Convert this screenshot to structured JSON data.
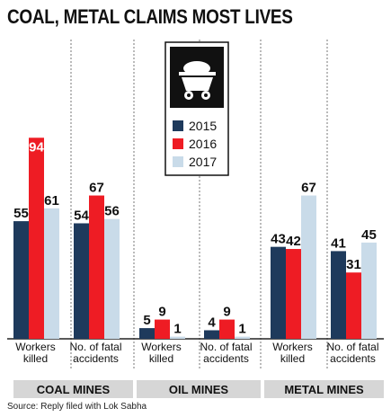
{
  "chart_data": {
    "type": "bar",
    "title": "COAL, METAL CLAIMS MOST LIVES",
    "source": "Source: Reply filed with Lok Sabha",
    "series_names": [
      "2015",
      "2016",
      "2017"
    ],
    "series_colors": [
      "#1e3a5c",
      "#ee1c24",
      "#c9dbe9"
    ],
    "categories": [
      "Workers killed",
      "No. of fatal accidents",
      "Workers killed",
      "No. of fatal accidents",
      "Workers killed",
      "No. of fatal accidents"
    ],
    "category_lines": [
      [
        "Workers",
        "killed"
      ],
      [
        "No. of fatal",
        "accidents"
      ],
      [
        "Workers",
        "killed"
      ],
      [
        "No. of fatal",
        "accidents"
      ],
      [
        "Workers",
        "killed"
      ],
      [
        "No. of fatal",
        "accidents"
      ]
    ],
    "groups": [
      "COAL MINES",
      "OIL MINES",
      "METAL MINES"
    ],
    "series": [
      {
        "name": "2015",
        "values": [
          55,
          54,
          5,
          4,
          43,
          41
        ]
      },
      {
        "name": "2016",
        "values": [
          94,
          67,
          9,
          9,
          42,
          31
        ]
      },
      {
        "name": "2017",
        "values": [
          61,
          56,
          1,
          1,
          67,
          45
        ]
      }
    ],
    "ylim": [
      0,
      100
    ],
    "grid": false,
    "legend_placement": "top-center"
  }
}
